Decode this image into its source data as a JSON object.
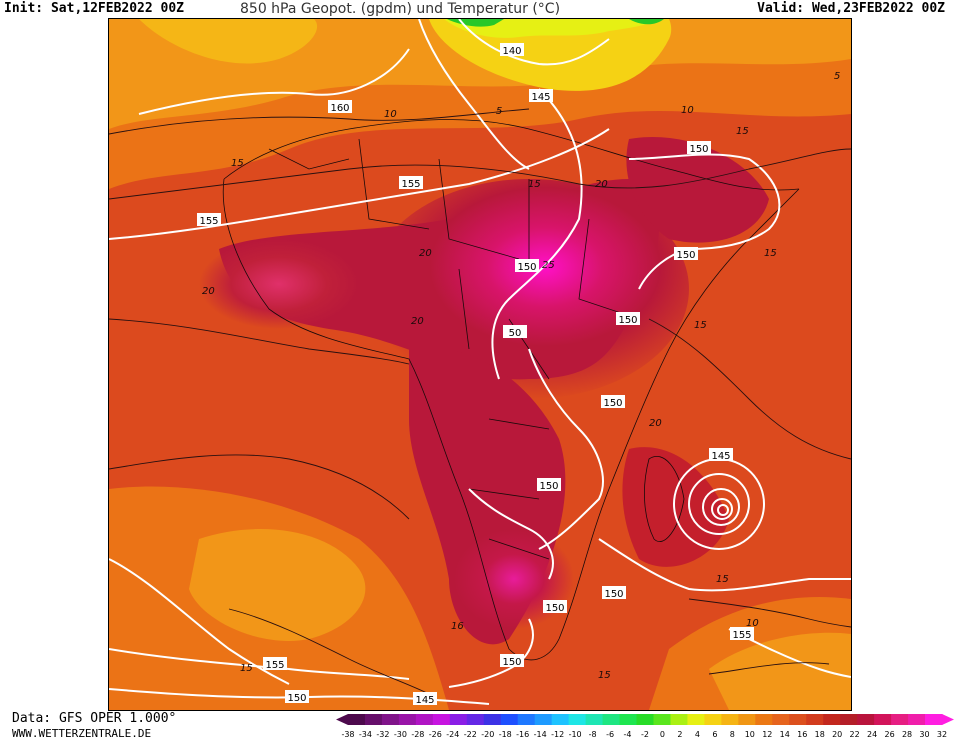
{
  "header": {
    "init": "Init: Sat,12FEB2022 00Z",
    "title": "850 hPa Geopot. (gpdm) und Temperatur (°C)",
    "valid": "Valid: Wed,23FEB2022 00Z"
  },
  "footer": {
    "source": "Data: GFS OPER 1.000°",
    "website": "WWW.WETTERZENTRALE.DE"
  },
  "geopotential_labels": [
    {
      "text": "140"
    },
    {
      "text": "145"
    },
    {
      "text": "160"
    },
    {
      "text": "155"
    },
    {
      "text": "155"
    },
    {
      "text": "150"
    },
    {
      "text": "150"
    },
    {
      "text": "150"
    },
    {
      "text": "50"
    },
    {
      "text": "150"
    },
    {
      "text": "150"
    },
    {
      "text": "145"
    },
    {
      "text": "150"
    },
    {
      "text": "150"
    },
    {
      "text": "150"
    },
    {
      "text": "150"
    },
    {
      "text": "155"
    },
    {
      "text": "155"
    },
    {
      "text": "150"
    },
    {
      "text": "145"
    }
  ],
  "temperature_labels": [
    {
      "text": "5"
    },
    {
      "text": "5"
    },
    {
      "text": "10"
    },
    {
      "text": "10"
    },
    {
      "text": "15"
    },
    {
      "text": "15"
    },
    {
      "text": "15"
    },
    {
      "text": "15"
    },
    {
      "text": "20"
    },
    {
      "text": "20"
    },
    {
      "text": "20"
    },
    {
      "text": "25"
    },
    {
      "text": "20"
    },
    {
      "text": "20"
    },
    {
      "text": "15"
    },
    {
      "text": "15"
    },
    {
      "text": "16"
    },
    {
      "text": "10"
    },
    {
      "text": "15"
    },
    {
      "text": "15"
    }
  ],
  "legend": {
    "ticks": [
      "-38",
      "-34",
      "-32",
      "-30",
      "-28",
      "-26",
      "-24",
      "-22",
      "-20",
      "-18",
      "-16",
      "-14",
      "-12",
      "-10",
      "-8",
      "-6",
      "-4",
      "-2",
      "0",
      "2",
      "4",
      "6",
      "8",
      "10",
      "12",
      "14",
      "16",
      "18",
      "20",
      "22",
      "24",
      "26",
      "28",
      "30",
      "32"
    ],
    "colors": [
      "#4d0a4d",
      "#660f6b",
      "#80148a",
      "#9914a8",
      "#b014c4",
      "#c714e0",
      "#8a1ee6",
      "#6428e6",
      "#3c32e6",
      "#1e50ff",
      "#1e78ff",
      "#1e9bff",
      "#1ec3ff",
      "#1ee6e6",
      "#1ee6b4",
      "#1ee682",
      "#1ee650",
      "#28dc28",
      "#5ae61e",
      "#aaf014",
      "#e6f014",
      "#f5d214",
      "#f5b414",
      "#f09614",
      "#eb7814",
      "#e6641e",
      "#dc501e",
      "#d23c1e",
      "#c3281e",
      "#b41e28",
      "#b9143c",
      "#d2145a",
      "#e61e82",
      "#f01eaa",
      "#ff1ee1"
    ]
  }
}
